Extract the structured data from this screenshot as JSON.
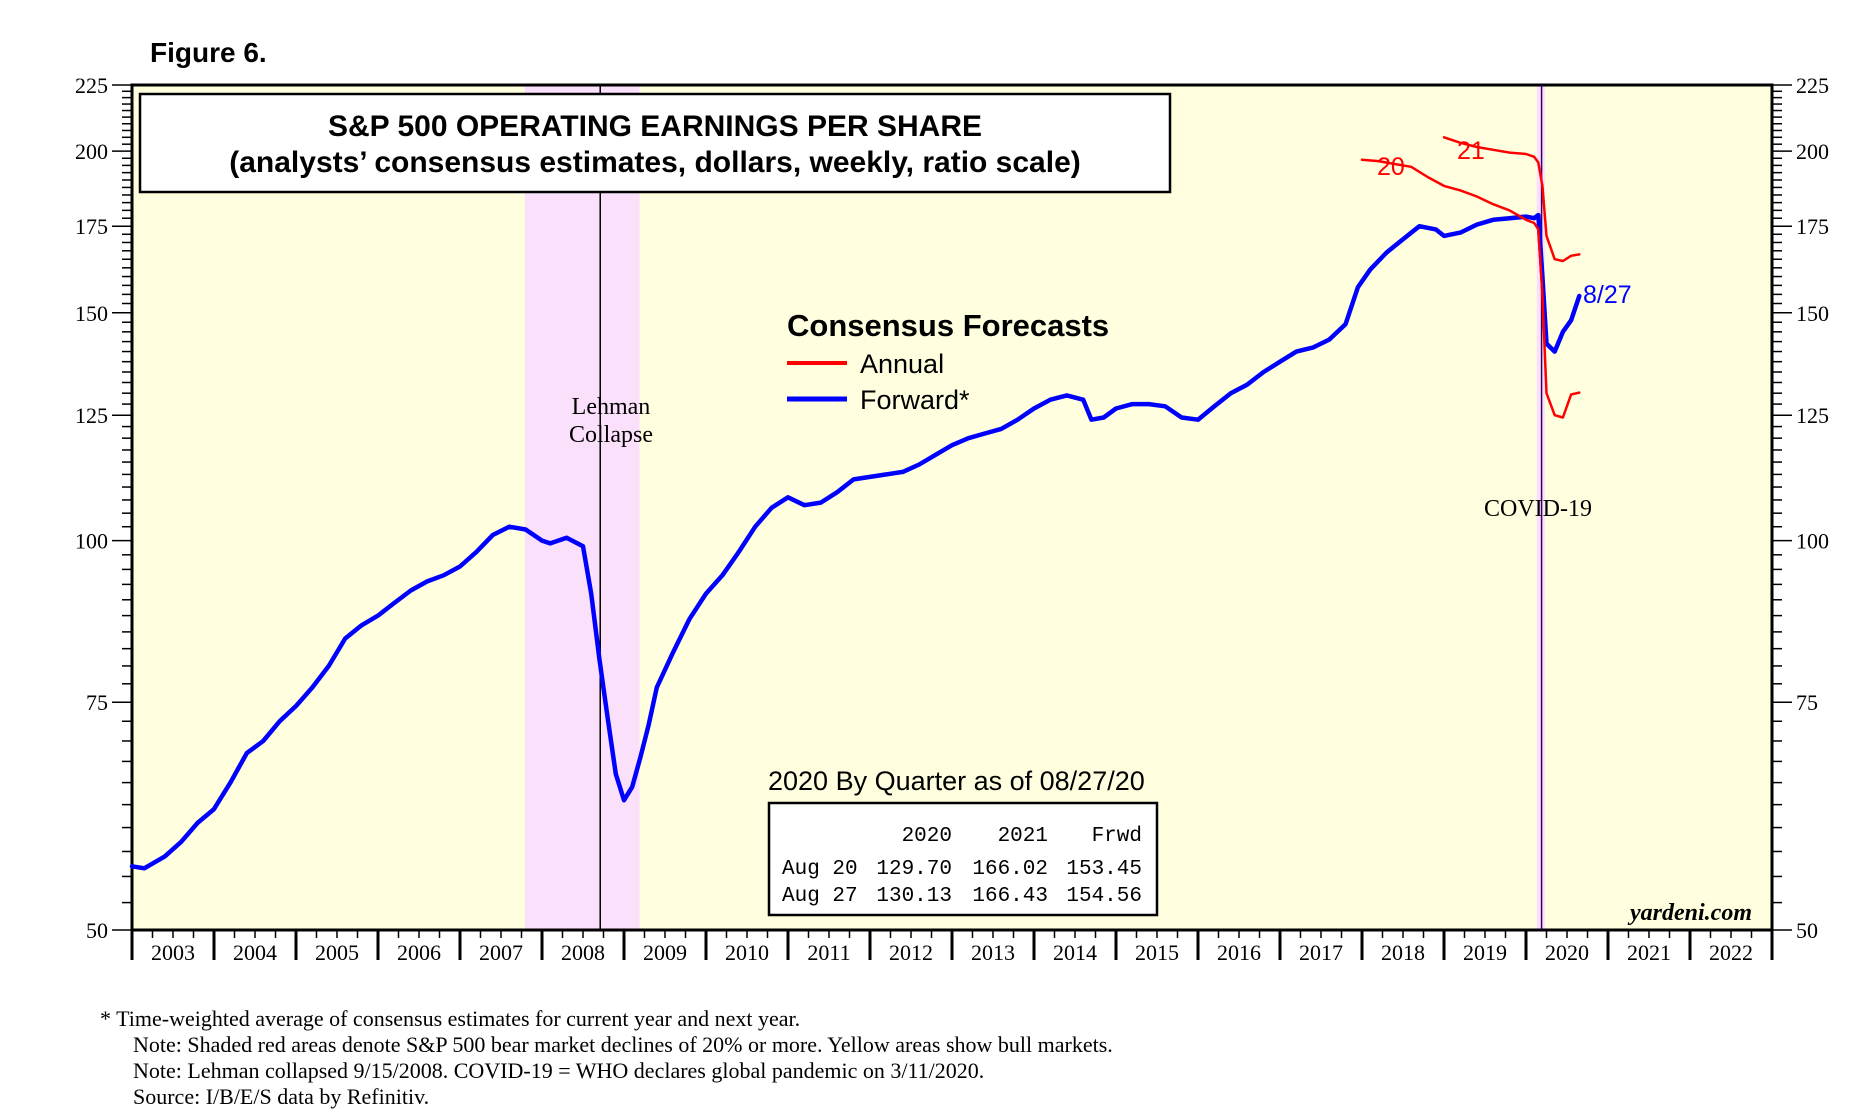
{
  "figure_label": "Figure 6.",
  "title_line1": "S&P 500 OPERATING EARNINGS PER SHARE",
  "title_line2": "(analysts’ consensus estimates, dollars, weekly, ratio scale)",
  "legend": {
    "title": "Consensus Forecasts",
    "annual": "Annual",
    "forward": "Forward*"
  },
  "annotations": {
    "lehman_line1": "Lehman",
    "lehman_line2": "Collapse",
    "covid": "COVID-19",
    "label_20": "20",
    "label_21": "21",
    "label_827": "8/27",
    "watermark": "yardeni.com"
  },
  "quarter_table": {
    "title": "2020 By Quarter as of 08/27/20",
    "headers": [
      "",
      "2020",
      "2021",
      "Frwd"
    ],
    "rows": [
      [
        "Aug 20",
        "129.70",
        "166.02",
        "153.45"
      ],
      [
        "Aug 27",
        "130.13",
        "166.43",
        "154.56"
      ]
    ]
  },
  "footnotes": [
    "*  Time-weighted average of consensus estimates for current year and next year.",
    "Note: Shaded red areas denote S&P 500 bear market declines of 20% or more. Yellow areas show bull markets.",
    "Note: Lehman collapsed 9/15/2008. COVID-19 = WHO declares global pandemic on 3/11/2020.",
    "Source: I/B/E/S data by Refinitiv."
  ],
  "colors": {
    "background": "#ffffe0",
    "bear_shade": "#fbe0fb",
    "forward": "#0000ff",
    "annual": "#ff0000",
    "annotation_red": "#ff0000",
    "annotation_blue": "#0000ff"
  },
  "chart_data": {
    "type": "line",
    "title": "S&P 500 OPERATING EARNINGS PER SHARE",
    "subtitle": "(analysts’ consensus estimates, dollars, weekly, ratio scale)",
    "scale": "log",
    "xlim": [
      2003.0,
      2023.0
    ],
    "ylim": [
      50,
      225
    ],
    "ytick_labels": [
      50,
      75,
      100,
      125,
      150,
      175,
      200,
      225
    ],
    "x_tick_labels": [
      "2003",
      "2004",
      "2005",
      "2006",
      "2007",
      "2008",
      "2009",
      "2010",
      "2011",
      "2012",
      "2013",
      "2014",
      "2015",
      "2016",
      "2017",
      "2018",
      "2019",
      "2020",
      "2021",
      "2022"
    ],
    "shaded_regions": [
      [
        2007.79,
        2009.19
      ],
      [
        2020.13,
        2020.23
      ]
    ],
    "events": [
      {
        "label": "Lehman Collapse",
        "x": 2008.71
      },
      {
        "label": "COVID-19",
        "x": 2020.19
      }
    ],
    "series": [
      {
        "name": "Forward*",
        "x": [
          2003.0,
          2003.15,
          2003.4,
          2003.6,
          2003.8,
          2004.0,
          2004.2,
          2004.4,
          2004.6,
          2004.8,
          2005.0,
          2005.2,
          2005.4,
          2005.6,
          2005.8,
          2006.0,
          2006.2,
          2006.4,
          2006.6,
          2006.8,
          2007.0,
          2007.2,
          2007.4,
          2007.6,
          2007.8,
          2008.0,
          2008.1,
          2008.3,
          2008.5,
          2008.6,
          2008.7,
          2008.8,
          2008.9,
          2009.0,
          2009.1,
          2009.2,
          2009.3,
          2009.4,
          2009.6,
          2009.8,
          2010.0,
          2010.2,
          2010.4,
          2010.6,
          2010.8,
          2011.0,
          2011.2,
          2011.4,
          2011.6,
          2011.8,
          2012.0,
          2012.2,
          2012.4,
          2012.6,
          2012.8,
          2013.0,
          2013.2,
          2013.4,
          2013.6,
          2013.8,
          2014.0,
          2014.2,
          2014.4,
          2014.6,
          2014.7,
          2014.85,
          2015.0,
          2015.2,
          2015.4,
          2015.6,
          2015.8,
          2016.0,
          2016.2,
          2016.4,
          2016.6,
          2016.8,
          2017.0,
          2017.2,
          2017.4,
          2017.6,
          2017.8,
          2017.95,
          2018.1,
          2018.3,
          2018.5,
          2018.7,
          2018.9,
          2019.0,
          2019.2,
          2019.4,
          2019.6,
          2019.8,
          2020.0,
          2020.1,
          2020.15,
          2020.2,
          2020.25,
          2020.35,
          2020.45,
          2020.55,
          2020.65
        ],
        "values": [
          56,
          55.8,
          57,
          58.5,
          60.5,
          62,
          65,
          68.5,
          70,
          72.5,
          74.5,
          77,
          80,
          84,
          86,
          87.5,
          89.5,
          91.5,
          93,
          94,
          95.5,
          98,
          101,
          102.5,
          102,
          100,
          99.5,
          100.5,
          99,
          91,
          81,
          73,
          66,
          63,
          64.5,
          68,
          72,
          77,
          82,
          87,
          91,
          94,
          98,
          102.5,
          106,
          108,
          106.5,
          107,
          109,
          111.5,
          112,
          112.5,
          113,
          114.5,
          116.5,
          118.5,
          120,
          121,
          122,
          124,
          126.5,
          128.5,
          129.5,
          128.5,
          124,
          124.5,
          126.5,
          127.5,
          127.5,
          127,
          124.5,
          124,
          127,
          130,
          132,
          135,
          137.5,
          140,
          141,
          143,
          147,
          157,
          162,
          167,
          171,
          175,
          174,
          172,
          173,
          175.5,
          177,
          177.5,
          178,
          177.5,
          178.5,
          160,
          142,
          140,
          145,
          148,
          154.56
        ]
      },
      {
        "name": "Annual 2020",
        "x": [
          2018.0,
          2018.2,
          2018.4,
          2018.6,
          2018.8,
          2019.0,
          2019.2,
          2019.4,
          2019.6,
          2019.8,
          2020.0,
          2020.1,
          2020.15,
          2020.2,
          2020.25,
          2020.35,
          2020.45,
          2020.55,
          2020.65
        ],
        "values": [
          197,
          196.5,
          195.5,
          194.5,
          191,
          188,
          186.5,
          184.5,
          182,
          180,
          177,
          176,
          174,
          155,
          130,
          125,
          124.5,
          129.7,
          130.13
        ]
      },
      {
        "name": "Annual 2021",
        "x": [
          2019.0,
          2019.2,
          2019.4,
          2019.6,
          2019.8,
          2020.0,
          2020.1,
          2020.15,
          2020.2,
          2020.25,
          2020.35,
          2020.45,
          2020.55,
          2020.65
        ],
        "values": [
          205,
          203,
          201.5,
          200.5,
          199.5,
          199,
          198,
          196,
          188,
          172,
          165,
          164.5,
          166.02,
          166.43
        ]
      }
    ],
    "ylabel": "",
    "xlabel": ""
  }
}
